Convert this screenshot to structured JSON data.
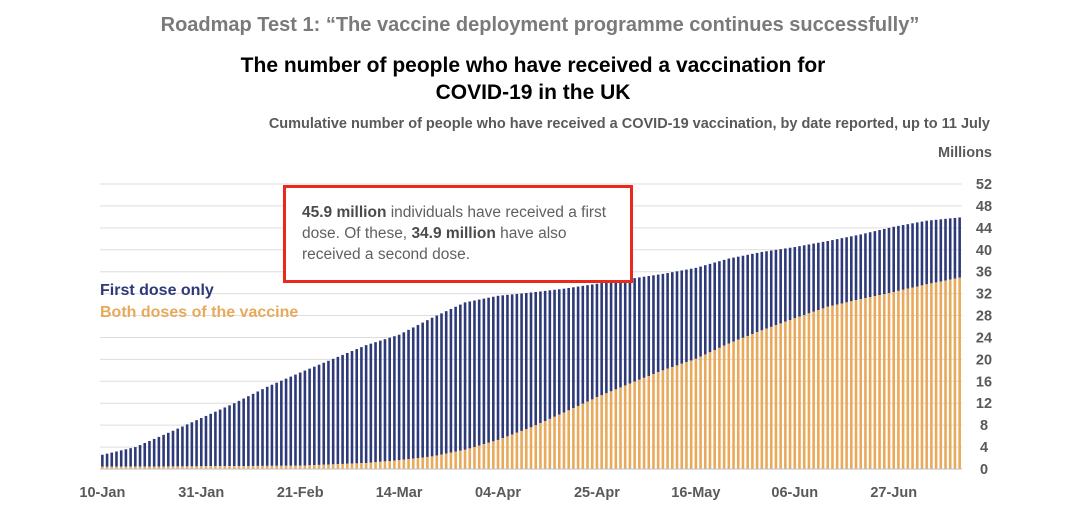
{
  "titles": {
    "supertitle": "Roadmap Test 1: “The vaccine deployment programme continues successfully”",
    "title_line1": "The number of people who have received a vaccination for",
    "title_line2": "COVID-19 in the UK",
    "subtitle": "Cumulative number of people who have received a COVID-19 vaccination, by date reported, up to 11 July",
    "units": "Millions"
  },
  "legend": {
    "first_dose_only": "First dose only",
    "both_doses": "Both doses of the vaccine"
  },
  "callout": {
    "value1": "45.9 million",
    "text1": " individuals have received a first dose. Of these, ",
    "value2": "34.9 million",
    "text2": " have also received a second dose."
  },
  "colors": {
    "first_dose": "#2e3a78",
    "both_doses": "#e8a95a",
    "callout_border": "#e8291c",
    "grid": "#dddddd"
  },
  "chart_data": {
    "type": "bar",
    "stacked": true,
    "x_tick_labels": [
      "10-Jan",
      "31-Jan",
      "21-Feb",
      "14-Mar",
      "04-Apr",
      "25-Apr",
      "16-May",
      "06-Jun",
      "27-Jun"
    ],
    "y_ticks": [
      0,
      4,
      8,
      12,
      16,
      20,
      24,
      28,
      32,
      36,
      40,
      44,
      48,
      52
    ],
    "ylim": [
      0,
      52
    ],
    "y_axis_side": "right",
    "grid": true,
    "legend_position": "left",
    "start_date": "2021-01-10",
    "end_date": "2021-07-11",
    "series": [
      {
        "name": "First dose only",
        "description": "cumulative people with at least one dose (millions)",
        "anchors": [
          [
            "2021-01-10",
            2.6
          ],
          [
            "2021-01-17",
            4.0
          ],
          [
            "2021-01-24",
            6.6
          ],
          [
            "2021-01-31",
            9.3
          ],
          [
            "2021-02-07",
            12.0
          ],
          [
            "2021-02-14",
            15.0
          ],
          [
            "2021-02-21",
            17.6
          ],
          [
            "2021-02-28",
            20.1
          ],
          [
            "2021-03-07",
            22.6
          ],
          [
            "2021-03-14",
            24.5
          ],
          [
            "2021-03-21",
            27.6
          ],
          [
            "2021-03-28",
            30.4
          ],
          [
            "2021-04-04",
            31.6
          ],
          [
            "2021-04-11",
            32.2
          ],
          [
            "2021-04-18",
            32.9
          ],
          [
            "2021-04-25",
            33.8
          ],
          [
            "2021-05-02",
            34.7
          ],
          [
            "2021-05-09",
            35.6
          ],
          [
            "2021-05-16",
            36.7
          ],
          [
            "2021-05-23",
            38.4
          ],
          [
            "2021-05-30",
            39.6
          ],
          [
            "2021-06-06",
            40.5
          ],
          [
            "2021-06-13",
            41.6
          ],
          [
            "2021-06-20",
            42.8
          ],
          [
            "2021-06-27",
            44.2
          ],
          [
            "2021-07-04",
            45.3
          ],
          [
            "2021-07-11",
            45.9
          ]
        ]
      },
      {
        "name": "Both doses of the vaccine",
        "description": "cumulative people with two doses (millions)",
        "anchors": [
          [
            "2021-01-10",
            0.4
          ],
          [
            "2021-01-31",
            0.5
          ],
          [
            "2021-02-21",
            0.6
          ],
          [
            "2021-03-07",
            1.1
          ],
          [
            "2021-03-14",
            1.6
          ],
          [
            "2021-03-21",
            2.3
          ],
          [
            "2021-03-28",
            3.5
          ],
          [
            "2021-04-04",
            5.3
          ],
          [
            "2021-04-11",
            7.6
          ],
          [
            "2021-04-18",
            10.3
          ],
          [
            "2021-04-25",
            13.1
          ],
          [
            "2021-05-02",
            15.6
          ],
          [
            "2021-05-09",
            18.0
          ],
          [
            "2021-05-16",
            20.1
          ],
          [
            "2021-05-23",
            22.9
          ],
          [
            "2021-05-30",
            25.3
          ],
          [
            "2021-06-06",
            27.5
          ],
          [
            "2021-06-13",
            29.6
          ],
          [
            "2021-06-20",
            31.0
          ],
          [
            "2021-06-27",
            32.3
          ],
          [
            "2021-07-04",
            33.7
          ],
          [
            "2021-07-11",
            34.9
          ]
        ]
      }
    ]
  }
}
